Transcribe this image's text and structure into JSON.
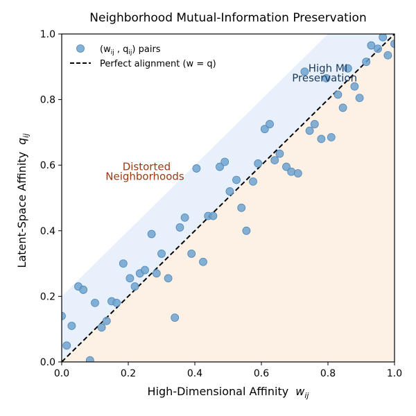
{
  "chart_data": {
    "type": "scatter",
    "title": "Neighborhood Mutual-Information Preservation",
    "xlabel": "High-Dimensional Affinity",
    "xlabel_symbol": "w",
    "xlabel_sub": "ij",
    "ylabel": "Latent-Space Affinity",
    "ylabel_symbol": "q",
    "ylabel_sub": "ij",
    "xlim": [
      0.0,
      1.0
    ],
    "ylim": [
      0.0,
      1.0
    ],
    "xticks": [
      "0.0",
      "0.2",
      "0.4",
      "0.6",
      "0.8",
      "1.0"
    ],
    "yticks": [
      "0.0",
      "0.2",
      "0.4",
      "0.6",
      "0.8",
      "1.0"
    ],
    "grid": false,
    "legend_position": "top-left",
    "legend": {
      "points_label": "(w",
      "points_sub1": "ij",
      "points_mid": " , q",
      "points_sub2": "ij",
      "points_end": ") pairs",
      "line_label": "Perfect alignment  (w = q)"
    },
    "annotations": [
      {
        "text": "High MI",
        "x": 0.8,
        "y": 0.885,
        "color": "#1a3a5c"
      },
      {
        "text": "Preservation",
        "x": 0.79,
        "y": 0.855,
        "color": "#1a3a5c"
      },
      {
        "text": "Distorted",
        "x": 0.255,
        "y": 0.585,
        "color": "#9a3a10"
      },
      {
        "text": "Neighborhoods",
        "x": 0.25,
        "y": 0.555,
        "color": "#9a3a10"
      }
    ],
    "colors": {
      "points": "#6fa3cf",
      "points_edge": "#4f86b6",
      "upper_band": "#e8f0fb",
      "lower_region": "#fdf1e6",
      "diagonal": "#000000"
    },
    "series": [
      {
        "name": "(wij , qij) pairs",
        "points": [
          [
            0.0,
            0.14
          ],
          [
            0.015,
            0.05
          ],
          [
            0.03,
            0.11
          ],
          [
            0.05,
            0.23
          ],
          [
            0.065,
            0.22
          ],
          [
            0.085,
            0.005
          ],
          [
            0.1,
            0.18
          ],
          [
            0.12,
            0.105
          ],
          [
            0.135,
            0.125
          ],
          [
            0.15,
            0.185
          ],
          [
            0.165,
            0.18
          ],
          [
            0.185,
            0.3
          ],
          [
            0.205,
            0.255
          ],
          [
            0.22,
            0.23
          ],
          [
            0.235,
            0.27
          ],
          [
            0.25,
            0.28
          ],
          [
            0.27,
            0.39
          ],
          [
            0.285,
            0.27
          ],
          [
            0.3,
            0.33
          ],
          [
            0.32,
            0.255
          ],
          [
            0.34,
            0.135
          ],
          [
            0.355,
            0.41
          ],
          [
            0.37,
            0.44
          ],
          [
            0.39,
            0.33
          ],
          [
            0.405,
            0.59
          ],
          [
            0.425,
            0.305
          ],
          [
            0.44,
            0.445
          ],
          [
            0.455,
            0.445
          ],
          [
            0.475,
            0.595
          ],
          [
            0.49,
            0.61
          ],
          [
            0.505,
            0.52
          ],
          [
            0.525,
            0.555
          ],
          [
            0.54,
            0.47
          ],
          [
            0.555,
            0.4
          ],
          [
            0.575,
            0.55
          ],
          [
            0.59,
            0.605
          ],
          [
            0.61,
            0.71
          ],
          [
            0.625,
            0.725
          ],
          [
            0.64,
            0.615
          ],
          [
            0.655,
            0.635
          ],
          [
            0.675,
            0.595
          ],
          [
            0.69,
            0.58
          ],
          [
            0.71,
            0.575
          ],
          [
            0.73,
            0.885
          ],
          [
            0.745,
            0.705
          ],
          [
            0.76,
            0.725
          ],
          [
            0.78,
            0.68
          ],
          [
            0.795,
            0.865
          ],
          [
            0.81,
            0.685
          ],
          [
            0.83,
            0.815
          ],
          [
            0.845,
            0.775
          ],
          [
            0.86,
            0.895
          ],
          [
            0.88,
            0.84
          ],
          [
            0.895,
            0.805
          ],
          [
            0.915,
            0.915
          ],
          [
            0.93,
            0.965
          ],
          [
            0.95,
            0.955
          ],
          [
            0.965,
            0.99
          ],
          [
            0.98,
            0.935
          ],
          [
            1.0,
            0.97
          ]
        ]
      }
    ]
  }
}
